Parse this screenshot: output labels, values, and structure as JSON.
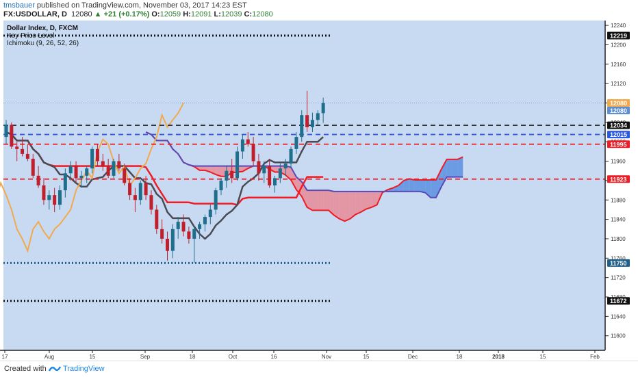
{
  "header": {
    "author": "tmsbauer",
    "published": "published on TradingView.com, November 03, 2017 14:23 EST",
    "symbol": "FX:USDOLLAR, D",
    "change": "▲ +21 (+0.17%)",
    "o_label": "O:",
    "o": "12059",
    "h_label": "H:",
    "h": "12091",
    "l_label": "L:",
    "l": "12039",
    "c_label": "C:",
    "c": "12080",
    "last": "12080"
  },
  "legend": {
    "line1": "Dollar Index, D, FXCM",
    "line2": "Key Price Level",
    "line3": "Ichimoku (9, 26, 52, 26)"
  },
  "footer": {
    "created": "Created with",
    "brand": "TradingView"
  },
  "colors": {
    "background": "#c7daf2",
    "kumo_bear": "#e88a97",
    "kumo_bull": "#5b8fe0",
    "kijun": "#ee1c24",
    "tenkan": "#4a4a55",
    "chikou": "#f2a94e",
    "span_b_outline": "#5a4ab8",
    "up_candle": "#1f6e8c",
    "down_candle": "#c0202c"
  },
  "chart_data": {
    "type": "candlestick",
    "title": "Dollar Index, D, FXCM",
    "ylim": [
      11570,
      12250
    ],
    "y_ticks": [
      12240,
      12200,
      12160,
      12120,
      12080,
      12040,
      12000,
      11960,
      11920,
      11880,
      11840,
      11800,
      11760,
      11720,
      11680,
      11640,
      11600
    ],
    "x_tick_labels": [
      "17",
      "Aug",
      "15",
      "Sep",
      "18",
      "Oct",
      "16",
      "Nov",
      "15",
      "Dec",
      "18",
      "2018",
      "15",
      "Feb"
    ],
    "price_labels": [
      {
        "value": 12219,
        "label": "12219",
        "color": "#111111"
      },
      {
        "value": 12080,
        "label": "12080",
        "color": "#f2a94e"
      },
      {
        "value": 12080,
        "label": "12080",
        "color": "#5d8fd0"
      },
      {
        "value": 12034,
        "label": "12034",
        "color": "#111111"
      },
      {
        "value": 12015,
        "label": "12015",
        "color": "#2a5adf"
      },
      {
        "value": 11995,
        "label": "11995",
        "color": "#ee1c24"
      },
      {
        "value": 11923,
        "label": "11923",
        "color": "#ee1c24"
      },
      {
        "value": 11750,
        "label": "11750",
        "color": "#1f5f8b"
      },
      {
        "value": 11672,
        "label": "11672",
        "color": "#111111"
      }
    ],
    "key_levels": [
      {
        "value": 12219,
        "style": "dotted",
        "color": "#111111",
        "end": "Nov"
      },
      {
        "value": 12034,
        "style": "dashed",
        "color": "#333333"
      },
      {
        "value": 12015,
        "style": "dashed",
        "color": "#3355dd"
      },
      {
        "value": 11995,
        "style": "dashed",
        "color": "#ee1c24"
      },
      {
        "value": 11923,
        "style": "dashed",
        "color": "#ee1c24"
      },
      {
        "value": 11750,
        "style": "dotted",
        "color": "#1f5f8b",
        "end": "Nov"
      },
      {
        "value": 11672,
        "style": "dotted",
        "color": "#111111",
        "end": "Nov"
      }
    ],
    "candles": [
      {
        "o": 12010,
        "h": 12045,
        "l": 11995,
        "c": 12035
      },
      {
        "o": 12035,
        "h": 12040,
        "l": 11985,
        "c": 11990
      },
      {
        "o": 11990,
        "h": 12000,
        "l": 11960,
        "c": 11985
      },
      {
        "o": 11985,
        "h": 12010,
        "l": 11970,
        "c": 11975
      },
      {
        "o": 11975,
        "h": 11995,
        "l": 11960,
        "c": 11965
      },
      {
        "o": 11965,
        "h": 11975,
        "l": 11925,
        "c": 11930
      },
      {
        "o": 11930,
        "h": 11950,
        "l": 11905,
        "c": 11910
      },
      {
        "o": 11910,
        "h": 11925,
        "l": 11870,
        "c": 11880
      },
      {
        "o": 11880,
        "h": 11900,
        "l": 11860,
        "c": 11890
      },
      {
        "o": 11890,
        "h": 11905,
        "l": 11855,
        "c": 11870
      },
      {
        "o": 11870,
        "h": 11910,
        "l": 11860,
        "c": 11900
      },
      {
        "o": 11900,
        "h": 11945,
        "l": 11885,
        "c": 11935
      },
      {
        "o": 11935,
        "h": 11960,
        "l": 11920,
        "c": 11950
      },
      {
        "o": 11950,
        "h": 11960,
        "l": 11915,
        "c": 11925
      },
      {
        "o": 11925,
        "h": 11940,
        "l": 11905,
        "c": 11930
      },
      {
        "o": 11930,
        "h": 11950,
        "l": 11915,
        "c": 11945
      },
      {
        "o": 11945,
        "h": 11990,
        "l": 11935,
        "c": 11985
      },
      {
        "o": 11985,
        "h": 11995,
        "l": 11950,
        "c": 11960
      },
      {
        "o": 11960,
        "h": 11975,
        "l": 11940,
        "c": 11950
      },
      {
        "o": 11950,
        "h": 11965,
        "l": 11925,
        "c": 11930
      },
      {
        "o": 11930,
        "h": 11965,
        "l": 11925,
        "c": 11960
      },
      {
        "o": 11960,
        "h": 11975,
        "l": 11940,
        "c": 11945
      },
      {
        "o": 11945,
        "h": 11955,
        "l": 11910,
        "c": 11915
      },
      {
        "o": 11915,
        "h": 11925,
        "l": 11880,
        "c": 11890
      },
      {
        "o": 11890,
        "h": 11905,
        "l": 11855,
        "c": 11880
      },
      {
        "o": 11880,
        "h": 11920,
        "l": 11870,
        "c": 11915
      },
      {
        "o": 11915,
        "h": 11930,
        "l": 11880,
        "c": 11890
      },
      {
        "o": 11890,
        "h": 11900,
        "l": 11850,
        "c": 11860
      },
      {
        "o": 11860,
        "h": 11870,
        "l": 11810,
        "c": 11820
      },
      {
        "o": 11820,
        "h": 11840,
        "l": 11790,
        "c": 11800
      },
      {
        "o": 11800,
        "h": 11815,
        "l": 11755,
        "c": 11775
      },
      {
        "o": 11775,
        "h": 11830,
        "l": 11760,
        "c": 11820
      },
      {
        "o": 11820,
        "h": 11845,
        "l": 11800,
        "c": 11835
      },
      {
        "o": 11835,
        "h": 11850,
        "l": 11805,
        "c": 11815
      },
      {
        "o": 11815,
        "h": 11825,
        "l": 11790,
        "c": 11800
      },
      {
        "o": 11800,
        "h": 11825,
        "l": 11750,
        "c": 11820
      },
      {
        "o": 11820,
        "h": 11835,
        "l": 11800,
        "c": 11830
      },
      {
        "o": 11830,
        "h": 11850,
        "l": 11815,
        "c": 11845
      },
      {
        "o": 11845,
        "h": 11870,
        "l": 11830,
        "c": 11860
      },
      {
        "o": 11860,
        "h": 11905,
        "l": 11850,
        "c": 11900
      },
      {
        "o": 11900,
        "h": 11925,
        "l": 11890,
        "c": 11920
      },
      {
        "o": 11920,
        "h": 11950,
        "l": 11905,
        "c": 11940
      },
      {
        "o": 11940,
        "h": 11965,
        "l": 11915,
        "c": 11925
      },
      {
        "o": 11925,
        "h": 11990,
        "l": 11920,
        "c": 11980
      },
      {
        "o": 11980,
        "h": 12015,
        "l": 11965,
        "c": 12005
      },
      {
        "o": 12005,
        "h": 12020,
        "l": 11990,
        "c": 11995
      },
      {
        "o": 11995,
        "h": 12010,
        "l": 11950,
        "c": 11960
      },
      {
        "o": 11960,
        "h": 11975,
        "l": 11920,
        "c": 11935
      },
      {
        "o": 11935,
        "h": 11960,
        "l": 11915,
        "c": 11950
      },
      {
        "o": 11950,
        "h": 11965,
        "l": 11905,
        "c": 11910
      },
      {
        "o": 11910,
        "h": 11930,
        "l": 11895,
        "c": 11925
      },
      {
        "o": 11925,
        "h": 11955,
        "l": 11915,
        "c": 11945
      },
      {
        "o": 11945,
        "h": 11965,
        "l": 11930,
        "c": 11955
      },
      {
        "o": 11955,
        "h": 11990,
        "l": 11945,
        "c": 11985
      },
      {
        "o": 11985,
        "h": 12020,
        "l": 11975,
        "c": 12010
      },
      {
        "o": 12010,
        "h": 12065,
        "l": 12000,
        "c": 12055
      },
      {
        "o": 12055,
        "h": 12105,
        "l": 12020,
        "c": 12030
      },
      {
        "o": 12030,
        "h": 12060,
        "l": 12020,
        "c": 12045
      },
      {
        "o": 12045,
        "h": 12065,
        "l": 12035,
        "c": 12059
      },
      {
        "o": 12059,
        "h": 12091,
        "l": 12039,
        "c": 12080
      }
    ]
  }
}
